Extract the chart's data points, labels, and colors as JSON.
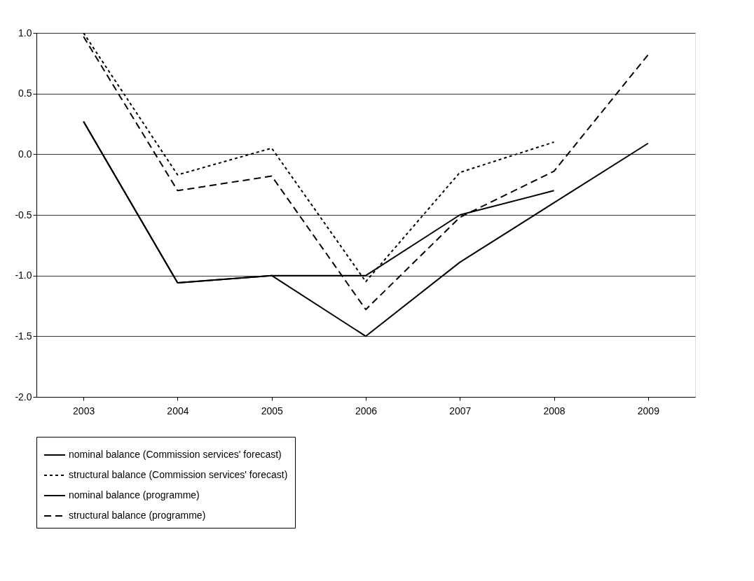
{
  "chart_data": {
    "type": "line",
    "categories": [
      "2003",
      "2004",
      "2005",
      "2006",
      "2007",
      "2008",
      "2009"
    ],
    "ylim": [
      -2.0,
      1.0
    ],
    "yticks": [
      {
        "value": -2.0,
        "label": "-2.0"
      },
      {
        "value": -1.5,
        "label": "-1.5"
      },
      {
        "value": -1.0,
        "label": "-1.0"
      },
      {
        "value": -0.5,
        "label": "-0.5"
      },
      {
        "value": 0.0,
        "label": "0.0"
      },
      {
        "value": 0.5,
        "label": "0.5"
      },
      {
        "value": 1.0,
        "label": "1.0"
      }
    ],
    "grid": "y",
    "legend": "bottom",
    "series": [
      {
        "name": "nominal balance (Commission services' forecast)",
        "color": "#000000",
        "line_style": "solid",
        "values": [
          0.27,
          -1.06,
          -1.0,
          -1.0,
          -0.5,
          -0.3,
          null
        ]
      },
      {
        "name": "structural balance (Commission services' forecast)",
        "color": "#000000",
        "line_style": "dotted",
        "values": [
          1.0,
          -0.17,
          0.05,
          -1.05,
          -0.15,
          0.1,
          null
        ]
      },
      {
        "name": "nominal balance (programme)",
        "color": "#000000",
        "line_style": "solid",
        "values": [
          0.27,
          -1.06,
          -1.0,
          -1.5,
          -0.89,
          -0.4,
          0.09
        ]
      },
      {
        "name": "structural balance (programme)",
        "color": "#000000",
        "line_style": "dashed",
        "values": [
          0.97,
          -0.3,
          -0.18,
          -1.28,
          -0.52,
          -0.14,
          0.82
        ]
      }
    ]
  }
}
